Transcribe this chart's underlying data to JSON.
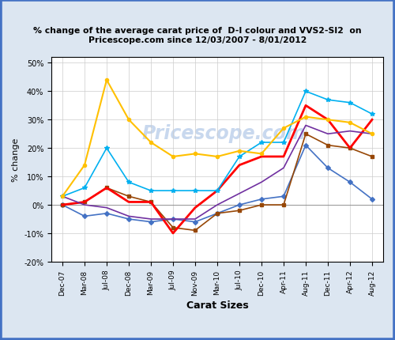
{
  "title": "% change of the average carat price of  D-I colour and VVS2-SI2  on\nPricescope.com since 12/03/2007 - 8/01/2012",
  "xlabel": "Carat Sizes",
  "ylabel": "% change",
  "watermark": "Pricescope.com",
  "bg_color": "#dce6f1",
  "plot_bg_color": "#ffffff",
  "border_color": "#4472c4",
  "ylim": [
    -20,
    52
  ],
  "yticks": [
    -20,
    -10,
    0,
    10,
    20,
    30,
    40,
    50
  ],
  "x_labels": [
    "Dec-07",
    "Mar-08",
    "Jul-08",
    "Dec-08",
    "Mar-09",
    "Jul-09",
    "Nov-09",
    "Mar-10",
    "Jul-10",
    "Dec-10",
    "Apr-11",
    "Aug-11",
    "Dec-11",
    "Apr-12",
    "Aug-12"
  ],
  "series": {
    "0 to 0.5": {
      "color": "#4472c4",
      "marker": "D",
      "markersize": 3,
      "linewidth": 1.2,
      "values": [
        0,
        -4,
        -3,
        -5,
        -6,
        -5,
        -6,
        -3,
        0,
        2,
        3,
        21,
        13,
        8,
        2
      ]
    },
    "0.5  to 1": {
      "color": "#974706",
      "marker": "s",
      "markersize": 3,
      "linewidth": 1.2,
      "values": [
        0,
        1,
        6,
        3,
        1,
        -8,
        -9,
        -3,
        -2,
        0,
        0,
        25,
        21,
        20,
        17
      ]
    },
    "1 to 2": {
      "color": "#ff0000",
      "marker": "",
      "markersize": 0,
      "linewidth": 2.0,
      "values": [
        0,
        1,
        6,
        1,
        1,
        -10,
        -1,
        5,
        14,
        17,
        17,
        35,
        30,
        20,
        30
      ]
    },
    "2 to 3": {
      "color": "#7030a0",
      "marker": "",
      "markersize": 0,
      "linewidth": 1.2,
      "values": [
        3,
        0,
        -1,
        -4,
        -5,
        -5,
        -5,
        0,
        4,
        8,
        13,
        28,
        25,
        26,
        25
      ]
    },
    "3 to 4": {
      "color": "#00b0f0",
      "marker": "*",
      "markersize": 4,
      "linewidth": 1.2,
      "values": [
        3,
        6,
        20,
        8,
        5,
        5,
        5,
        5,
        17,
        22,
        22,
        40,
        37,
        36,
        32
      ]
    },
    "4 to 99": {
      "color": "#ffc000",
      "marker": "o",
      "markersize": 3,
      "linewidth": 1.5,
      "values": [
        3,
        14,
        44,
        30,
        22,
        17,
        18,
        17,
        19,
        18,
        27,
        31,
        30,
        29,
        25
      ]
    }
  },
  "n_points": 15
}
